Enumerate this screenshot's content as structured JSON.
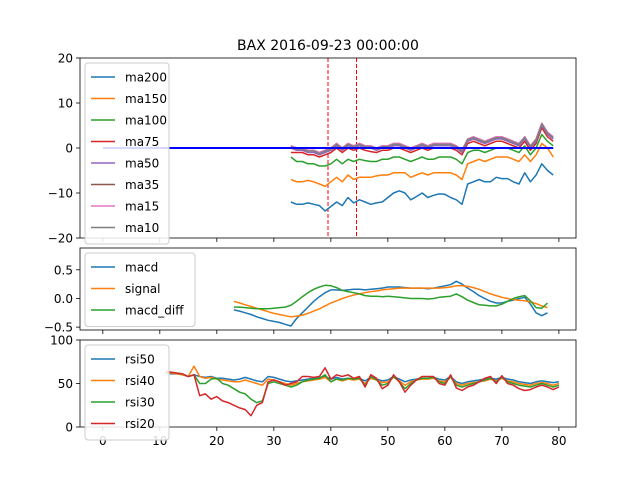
{
  "title": "BAX 2016-09-23 00:00:00",
  "colors": {
    "c0": "#1f77b4",
    "c1": "#ff7f0e",
    "c2": "#2ca02c",
    "c3": "#d62728",
    "c4": "#9467bd",
    "c5": "#8c564b",
    "c6": "#e377c2",
    "c7": "#7f7f7f",
    "zero_line": "#0000ff",
    "vline": "#ff0000"
  },
  "chart_data": [
    {
      "type": "line",
      "panel": "price",
      "ylim": [
        -20,
        20
      ],
      "xlim": [
        -4,
        83
      ],
      "yticks": [
        -20,
        -10,
        0,
        10,
        20
      ],
      "ytick_labels": [
        "−20",
        "−10",
        "0",
        "10",
        "20"
      ],
      "xticks": [
        0,
        10,
        20,
        30,
        40,
        50,
        60,
        70,
        80
      ],
      "legend_position": "upper-left",
      "vlines": [
        39.5,
        44.5
      ],
      "hline": {
        "y": 0,
        "x": [
          0,
          79
        ]
      },
      "series": [
        {
          "name": "ma200",
          "color_key": "c0",
          "x_start": 33,
          "values": [
            -12,
            -12.5,
            -12.5,
            -12.2,
            -12.5,
            -12.8,
            -14,
            -13,
            -12,
            -12.8,
            -11,
            -12.2,
            -11.5,
            -12,
            -12.5,
            -12.2,
            -12,
            -11,
            -10,
            -9.5,
            -10,
            -11.5,
            -10.8,
            -10,
            -11,
            -10.5,
            -10.2,
            -10.3,
            -11,
            -11.5,
            -12.5,
            -8,
            -7.5,
            -7,
            -7.5,
            -7.5,
            -6.5,
            -6.8,
            -6.8,
            -7.5,
            -8,
            -5.5,
            -7.5,
            -6,
            -3.5,
            -5,
            -6
          ]
        },
        {
          "name": "ma150",
          "color_key": "c1",
          "x_start": 33,
          "values": [
            -7,
            -7.5,
            -7.5,
            -7.2,
            -7.5,
            -8,
            -8.5,
            -7.5,
            -6.5,
            -7.5,
            -6,
            -7,
            -6.5,
            -6.5,
            -6.5,
            -6.2,
            -6,
            -6,
            -5.5,
            -5.5,
            -5.5,
            -6.5,
            -6,
            -5.5,
            -6,
            -5.5,
            -5.5,
            -5.5,
            -5.5,
            -6,
            -7,
            -3.5,
            -3,
            -2.5,
            -3,
            -2.5,
            -2,
            -2,
            -2,
            -2.5,
            -3,
            -1.5,
            -3,
            -1.5,
            1,
            0,
            -2
          ]
        },
        {
          "name": "ma100",
          "color_key": "c2",
          "x_start": 33,
          "values": [
            -2,
            -3,
            -3,
            -3.5,
            -3.5,
            -4,
            -4,
            -3.5,
            -2.5,
            -3.5,
            -2.5,
            -3,
            -2.5,
            -2.8,
            -3,
            -3,
            -2.5,
            -2.5,
            -2,
            -2,
            -2.5,
            -3,
            -2.5,
            -2,
            -2.5,
            -2.5,
            -2,
            -2,
            -2,
            -2.5,
            -3.5,
            -1,
            -0.5,
            -0.5,
            -1,
            -0.5,
            0,
            0,
            0,
            -0.5,
            -1,
            0.5,
            -1.5,
            0,
            3,
            1.5,
            0.5
          ]
        },
        {
          "name": "ma75",
          "color_key": "c3",
          "x_start": 33,
          "values": [
            -1,
            -1,
            -1,
            -1.5,
            -1.5,
            -2,
            -1.5,
            -1,
            0,
            -1,
            0,
            -0.5,
            0,
            -0.5,
            -0.8,
            -1,
            -0.5,
            -0.5,
            0,
            0,
            -0.5,
            -1,
            -0.5,
            0,
            -0.5,
            0,
            0,
            0,
            0,
            -0.5,
            -1.5,
            1,
            1.5,
            1,
            0.5,
            1,
            1.5,
            1.5,
            1,
            0.5,
            0,
            1.5,
            -0.5,
            1,
            4.5,
            2.5,
            1.5
          ]
        },
        {
          "name": "ma50",
          "color_key": "c4",
          "x_start": 33,
          "values": [
            0,
            -0.5,
            -0.5,
            -1,
            -1,
            -1.5,
            -1,
            -0.5,
            0.5,
            -0.5,
            0.5,
            0,
            0.5,
            0,
            0,
            -0.5,
            0,
            0,
            0.5,
            0.5,
            0,
            -0.5,
            0,
            0.5,
            0,
            0.5,
            0.5,
            0.5,
            0.5,
            0,
            -1,
            1.5,
            2,
            1.5,
            1,
            1.5,
            2,
            2,
            1.5,
            1,
            0.5,
            2,
            0,
            1.5,
            5,
            3,
            2
          ]
        },
        {
          "name": "ma35",
          "color_key": "c5",
          "x_start": 33,
          "values": [
            0.5,
            0,
            0,
            -0.5,
            -0.5,
            -1,
            -0.5,
            0,
            1,
            0,
            1,
            0.5,
            1,
            0.5,
            0.5,
            0,
            0.5,
            0.5,
            1,
            1,
            0.5,
            0,
            0.5,
            1,
            0.5,
            1,
            1,
            1,
            1,
            0.5,
            -0.5,
            2,
            2.5,
            2,
            1.5,
            2,
            2.5,
            2.5,
            2,
            1.5,
            1,
            2.5,
            0.5,
            2,
            5.5,
            3.5,
            2.5
          ]
        },
        {
          "name": "ma15",
          "color_key": "c6",
          "x_start": 33,
          "values": [
            0.5,
            0,
            0,
            -0.5,
            -0.5,
            -1,
            -0.5,
            0,
            1,
            0,
            1,
            0.5,
            1,
            0.5,
            0.5,
            0,
            0.5,
            0.5,
            1,
            1,
            0.5,
            0,
            0.5,
            1,
            0.5,
            1,
            1,
            1,
            1,
            0.5,
            -0.5,
            2,
            2.5,
            2,
            1.5,
            2,
            2.5,
            2.5,
            2,
            1.5,
            1,
            2.5,
            0.5,
            2,
            5.5,
            3.5,
            2.5
          ]
        },
        {
          "name": "ma10",
          "color_key": "c7",
          "x_start": 33,
          "values": [
            0.3,
            -0.2,
            -0.2,
            -0.7,
            -0.7,
            -1.2,
            -0.7,
            -0.2,
            0.8,
            -0.2,
            0.8,
            0.3,
            0.8,
            0.3,
            0.3,
            -0.2,
            0.3,
            0.3,
            0.8,
            0.8,
            0.3,
            -0.2,
            0.3,
            0.8,
            0.3,
            0.8,
            0.8,
            0.8,
            0.8,
            0.3,
            -0.7,
            1.8,
            2.3,
            1.8,
            1.3,
            1.8,
            2.3,
            2.3,
            1.8,
            1.3,
            0.8,
            2.3,
            0.3,
            1.8,
            5.3,
            3.3,
            2.3
          ]
        }
      ]
    },
    {
      "type": "line",
      "panel": "macd",
      "ylim": [
        -0.55,
        0.88
      ],
      "xlim": [
        -4,
        83
      ],
      "yticks": [
        -0.5,
        0.0,
        0.5
      ],
      "ytick_labels": [
        "−0.5",
        "0.0",
        "0.5"
      ],
      "xticks": [
        0,
        10,
        20,
        30,
        40,
        50,
        60,
        70,
        80
      ],
      "legend_position": "upper-left",
      "series": [
        {
          "name": "macd",
          "color_key": "c0",
          "x_start": 23,
          "values": [
            -0.2,
            -0.22,
            -0.25,
            -0.28,
            -0.32,
            -0.35,
            -0.38,
            -0.4,
            -0.42,
            -0.45,
            -0.48,
            -0.35,
            -0.25,
            -0.15,
            -0.05,
            0.03,
            0.1,
            0.15,
            0.15,
            0.14,
            0.15,
            0.16,
            0.16,
            0.15,
            0.16,
            0.17,
            0.18,
            0.2,
            0.2,
            0.2,
            0.19,
            0.18,
            0.18,
            0.18,
            0.17,
            0.18,
            0.2,
            0.22,
            0.24,
            0.3,
            0.25,
            0.18,
            0.12,
            0.05,
            0.0,
            -0.05,
            -0.08,
            -0.08,
            -0.05,
            -0.03,
            0.0,
            0.02,
            -0.1,
            -0.25,
            -0.3,
            -0.25
          ]
        },
        {
          "name": "signal",
          "color_key": "c1",
          "x_start": 23,
          "values": [
            -0.05,
            -0.08,
            -0.11,
            -0.14,
            -0.17,
            -0.2,
            -0.23,
            -0.26,
            -0.28,
            -0.3,
            -0.32,
            -0.31,
            -0.29,
            -0.26,
            -0.22,
            -0.18,
            -0.13,
            -0.08,
            -0.04,
            0.0,
            0.03,
            0.06,
            0.08,
            0.1,
            0.12,
            0.13,
            0.15,
            0.16,
            0.17,
            0.18,
            0.18,
            0.18,
            0.18,
            0.18,
            0.18,
            0.18,
            0.18,
            0.19,
            0.2,
            0.22,
            0.22,
            0.21,
            0.19,
            0.16,
            0.12,
            0.08,
            0.05,
            0.02,
            0.0,
            -0.02,
            -0.03,
            -0.04,
            -0.06,
            -0.09,
            -0.13,
            -0.16
          ]
        },
        {
          "name": "macd_diff",
          "color_key": "c2",
          "x_start": 23,
          "values": [
            -0.15,
            -0.15,
            -0.16,
            -0.17,
            -0.18,
            -0.18,
            -0.18,
            -0.17,
            -0.16,
            -0.15,
            -0.12,
            -0.05,
            0.03,
            0.1,
            0.16,
            0.2,
            0.23,
            0.22,
            0.19,
            0.14,
            0.12,
            0.1,
            0.08,
            0.05,
            0.04,
            0.04,
            0.03,
            0.04,
            0.03,
            0.02,
            0.01,
            0.0,
            0.0,
            0.0,
            -0.01,
            0.0,
            0.02,
            0.03,
            0.04,
            0.08,
            0.03,
            -0.03,
            -0.07,
            -0.11,
            -0.12,
            -0.13,
            -0.13,
            -0.1,
            -0.05,
            0.0,
            0.03,
            0.05,
            -0.04,
            -0.16,
            -0.17,
            -0.08
          ]
        }
      ]
    },
    {
      "type": "line",
      "panel": "rsi",
      "ylim": [
        0,
        100
      ],
      "xlim": [
        -4,
        83
      ],
      "yticks": [
        0,
        50,
        100
      ],
      "ytick_labels": [
        "0",
        "50",
        "100"
      ],
      "xticks": [
        0,
        10,
        20,
        30,
        40,
        50,
        60,
        70,
        80
      ],
      "xtick_labels": [
        "0",
        "10",
        "20",
        "30",
        "40",
        "50",
        "60",
        "70",
        "80"
      ],
      "legend_position": "upper-left",
      "series": [
        {
          "name": "rsi50",
          "color_key": "c0",
          "x_start": 11,
          "values": [
            62,
            61,
            61,
            60,
            58,
            60,
            58,
            57,
            58,
            56,
            56,
            55,
            54,
            55,
            57,
            55,
            53,
            52,
            58,
            57,
            55,
            53,
            52,
            53,
            54,
            55,
            56,
            57,
            58,
            55,
            57,
            55,
            56,
            55,
            56,
            53,
            57,
            55,
            53,
            54,
            58,
            55,
            52,
            54,
            55,
            56,
            56,
            57,
            55,
            54,
            58,
            52,
            50,
            52,
            53,
            54,
            55,
            56,
            55,
            57,
            55,
            54,
            52,
            51,
            50,
            52,
            53,
            52,
            51,
            52
          ]
        },
        {
          "name": "rsi40",
          "color_key": "c1",
          "x_start": 11,
          "values": [
            63,
            62,
            61,
            60,
            58,
            70,
            58,
            56,
            57,
            55,
            54,
            53,
            52,
            52,
            54,
            52,
            50,
            48,
            55,
            54,
            52,
            50,
            48,
            50,
            52,
            53,
            54,
            55,
            57,
            52,
            55,
            53,
            55,
            54,
            55,
            50,
            56,
            54,
            51,
            52,
            57,
            53,
            48,
            52,
            54,
            55,
            55,
            56,
            53,
            52,
            57,
            50,
            48,
            50,
            51,
            52,
            53,
            55,
            53,
            56,
            53,
            52,
            50,
            49,
            48,
            50,
            51,
            50,
            48,
            50
          ]
        },
        {
          "name": "rsi30",
          "color_key": "c2",
          "x_start": 11,
          "values": [
            64,
            63,
            62,
            61,
            58,
            60,
            50,
            50,
            55,
            56,
            50,
            48,
            44,
            40,
            38,
            32,
            28,
            30,
            50,
            52,
            50,
            48,
            46,
            48,
            52,
            54,
            55,
            56,
            60,
            52,
            55,
            54,
            56,
            55,
            56,
            48,
            58,
            54,
            48,
            50,
            58,
            52,
            44,
            50,
            54,
            56,
            56,
            57,
            52,
            50,
            58,
            48,
            46,
            48,
            50,
            52,
            54,
            56,
            52,
            57,
            52,
            50,
            48,
            47,
            46,
            48,
            50,
            48,
            46,
            48
          ]
        },
        {
          "name": "rsi20",
          "color_key": "c3",
          "x_start": 11,
          "values": [
            64,
            63,
            62,
            61,
            58,
            60,
            36,
            38,
            32,
            35,
            30,
            28,
            25,
            22,
            20,
            13,
            25,
            28,
            52,
            54,
            52,
            48,
            50,
            52,
            58,
            58,
            57,
            58,
            68,
            55,
            60,
            58,
            60,
            56,
            58,
            46,
            60,
            56,
            44,
            48,
            60,
            52,
            40,
            48,
            54,
            58,
            58,
            58,
            50,
            48,
            60,
            45,
            42,
            46,
            48,
            52,
            56,
            58,
            50,
            59,
            50,
            48,
            44,
            42,
            43,
            46,
            48,
            46,
            43,
            46
          ]
        }
      ]
    }
  ]
}
